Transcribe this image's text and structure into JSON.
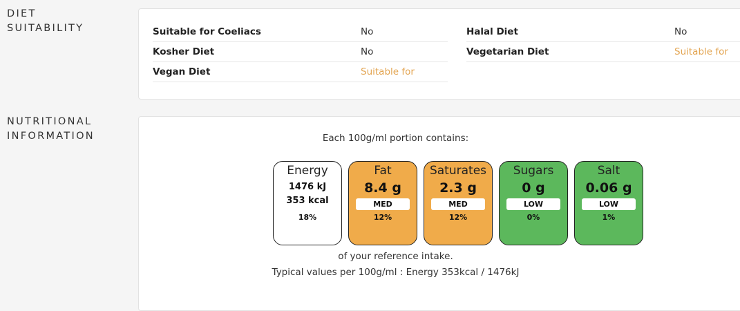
{
  "diet_section": {
    "title_line1": "DIET",
    "title_line2": "SUITABILITY",
    "left": [
      {
        "label": "Suitable for Coeliacs",
        "value": "No"
      },
      {
        "label": "Kosher Diet",
        "value": "No"
      },
      {
        "label": "Vegan Diet",
        "value": "Suitable for"
      }
    ],
    "right": [
      {
        "label": "Halal Diet",
        "value": "No"
      },
      {
        "label": "Vegetarian Diet",
        "value": "Suitable for"
      }
    ]
  },
  "nutrition_section": {
    "title_line1": "NUTRITIONAL",
    "title_line2": "INFORMATION",
    "intro": "Each 100g/ml portion contains:",
    "tiles": [
      {
        "name": "Energy",
        "line1": "1476 kJ",
        "line2": "353 kcal",
        "percent": "18%",
        "color": "#ffffff"
      },
      {
        "name": "Fat",
        "value": "8.4 g",
        "level": "MED",
        "percent": "12%",
        "color": "#f0ab4a"
      },
      {
        "name": "Saturates",
        "value": "2.3 g",
        "level": "MED",
        "percent": "12%",
        "color": "#f0ab4a"
      },
      {
        "name": "Sugars",
        "value": "0 g",
        "level": "LOW",
        "percent": "0%",
        "color": "#5cb85c"
      },
      {
        "name": "Salt",
        "value": "0.06 g",
        "level": "LOW",
        "percent": "1%",
        "color": "#5cb85c"
      }
    ],
    "reference_note": "of your reference intake.",
    "typical_values": "Typical values per 100g/ml : Energy 353kcal / 1476kJ"
  }
}
